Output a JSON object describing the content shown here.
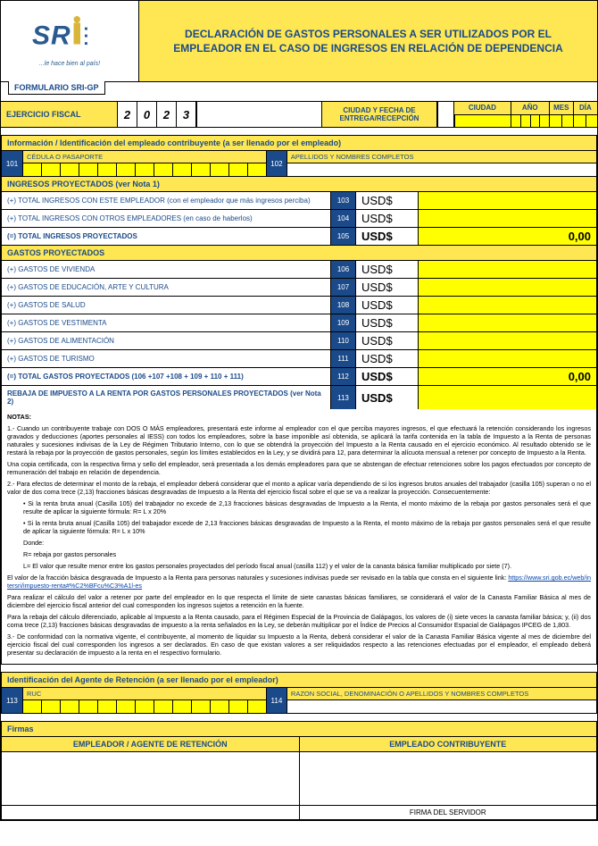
{
  "header": {
    "tagline": "...le hace bien al país!",
    "title": "DECLARACIÓN DE GASTOS PERSONALES A SER UTILIZADOS POR EL EMPLEADOR EN EL CASO DE INGRESOS EN RELACIÓN DE DEPENDENCIA",
    "formId": "FORMULARIO SRI-GP"
  },
  "fiscal": {
    "label": "EJERCICIO FISCAL",
    "year": [
      "2",
      "0",
      "2",
      "3"
    ],
    "cityDateLabel": "CIUDAD Y FECHA DE ENTREGA/RECEPCIÓN",
    "cols": {
      "ciudad": "CIUDAD",
      "ano": "AÑO",
      "mes": "MES",
      "dia": "DÍA"
    }
  },
  "ident": {
    "title": "Información / Identificación del empleado contribuyente (a ser llenado por el empleado)",
    "box101": "101",
    "lbl101": "CÉDULA O PASAPORTE",
    "box102": "102",
    "lbl102": "APELLIDOS Y NOMBRES COMPLETOS"
  },
  "ingresos": {
    "title": "INGRESOS PROYECTADOS (ver Nota 1)",
    "rows": [
      {
        "label": "(+) TOTAL INGRESOS CON ESTE EMPLEADOR (con el empleador que más ingresos perciba)",
        "num": "103",
        "usd": "USD$",
        "val": ""
      },
      {
        "label": "(+) TOTAL INGRESOS CON OTROS EMPLEADORES (en caso de haberlos)",
        "num": "104",
        "usd": "USD$",
        "val": ""
      },
      {
        "label": "(=) TOTAL INGRESOS PROYECTADOS",
        "num": "105",
        "usd": "USD$",
        "val": "0,00",
        "bold": true
      }
    ]
  },
  "gastos": {
    "title": "GASTOS PROYECTADOS",
    "rows": [
      {
        "label": "(+) GASTOS DE VIVIENDA",
        "num": "106",
        "usd": "USD$",
        "val": ""
      },
      {
        "label": "(+) GASTOS DE EDUCACIÓN, ARTE Y CULTURA",
        "num": "107",
        "usd": "USD$",
        "val": ""
      },
      {
        "label": "(+) GASTOS DE SALUD",
        "num": "108",
        "usd": "USD$",
        "val": ""
      },
      {
        "label": "(+) GASTOS DE VESTIMENTA",
        "num": "109",
        "usd": "USD$",
        "val": ""
      },
      {
        "label": "(+) GASTOS DE ALIMENTACIÓN",
        "num": "110",
        "usd": "USD$",
        "val": ""
      },
      {
        "label": "(+) GASTOS DE TURISMO",
        "num": "111",
        "usd": "USD$",
        "val": ""
      },
      {
        "label": "(=) TOTAL GASTOS PROYECTADOS                                                                                      (106 +107 +108 + 109 + 110 + 111)",
        "num": "112",
        "usd": "USD$",
        "val": "0,00",
        "bold": true
      },
      {
        "label": "REBAJA DE IMPUESTO A LA RENTA POR GASTOS PERSONALES PROYECTADOS                         (ver Nota 2)",
        "num": "113",
        "usd": "USD$",
        "val": "",
        "bold": true
      }
    ]
  },
  "notas": {
    "head": "NOTAS:",
    "p1": "1.- Cuando un contribuyente trabaje con DOS O MÁS empleadores, presentará este informe al empleador con el que perciba mayores ingresos, el que efectuará la retención considerando los ingresos gravados y deducciones (aportes personales al IESS) con todos los empleadores, sobre la base imponible así obtenida, se aplicará la tarifa contenida en la tabla de Impuesto a la Renta de personas naturales y sucesiones indivisas de la Ley de Régimen Tributario Interno, con lo que se obtendrá la proyección del Impuesto a la Renta causado en el ejercicio económico. Al resultado obtenido se le restará la rebaja por la proyección de gastos personales, según los límites establecidos en la Ley, y se dividirá para 12, para determinar la alícuota mensual a retener por concepto de Impuesto a la Renta.",
    "p1b": "Una copia certificada, con la respectiva firma y sello del empleador, será presentada a los demás empleadores para que se abstengan de efectuar retenciones sobre los pagos efectuados por concepto de remuneración del trabajo en relación de dependencia.",
    "p2": "2.- Para efectos de determinar el monto de la rebaja, el empleador deberá considerar que el monto a aplicar varía dependiendo de si los ingresos brutos anuales del trabajador (casilla 105) superan o no el valor de dos coma trece (2,13) fracciones básicas desgravadas de Impuesto a la Renta del ejercicio fiscal sobre el que se va a realizar la proyección. Consecuentemente:",
    "b1": "• Si la renta bruta anual (Casilla 105) del trabajador no excede de 2,13 fracciones básicas desgravadas de Impuesto a la Renta, el monto máximo de la rebaja por gastos personales será el que resulte de aplicar la siguiente fórmula: R= L x 20%",
    "b2": "• Si la renta bruta anual (Casilla 105) del trabajador excede de 2,13 fracciones básicas desgravadas de Impuesto a la Renta, el monto máximo de la rebaja por gastos personales será el que resulte de aplicar la siguiente fórmula: R= L x 10%",
    "donde": "Donde:",
    "dr": "R= rebaja por gastos personales",
    "dl": "L= El valor que resulte menor entre los gastos personales proyectados del período fiscal anual (casilla 112) y el valor de la canasta básica familiar multiplicado por siete (7).",
    "p3": "El valor de la fracción básica desgravada de Impuesto a la Renta para personas naturales y sucesiones indivisas puede ser revisado en la tabla que consta en el siguiente link: ",
    "link": "https://www.sri.gob.ec/web/intersri/impuesto-renta#%C2%BFcu%C3%A1l-es",
    "p4": "Para realizar el cálculo del valor a retener por parte del empleador en lo que respecta el límite de siete canastas básicas familiares, se considerará el valor de la Canasta Familiar Básica al mes de diciembre del ejercicio fiscal anterior del cual corresponden los ingresos sujetos a retención en la fuente.",
    "p5": "Para la rebaja del cálculo diferenciado, aplicable al Impuesto a la Renta causado, para el Régimen Especial de la Provincia de Galápagos, los valores de (i) siete veces la canasta familiar básica; y, (ii) dos coma trece (2,13) fracciones básicas desgravadas de impuesto a la renta señalados en la Ley, se deberán multiplicar por el Índice de Precios al Consumidor Espacial de Galápagos IPCEG de 1,803.",
    "p6": "3.- De conformidad con la normativa vigente, el contribuyente, al momento de liquidar su Impuesto a la Renta, deberá considerar el valor de la Canasta Familiar Básica vigente al mes de diciembre del ejercicio fiscal del cual corresponden los ingresos a ser declarados. En caso de que existan valores a ser reliquidados respecto a las retenciones efectuadas por el empleador, el empleado deberá presentar su declaración de impuesto a la renta en el respectivo formulario."
  },
  "agente": {
    "title": "Identificación del Agente de Retención (a ser llenado por el empleador)",
    "box113": "113",
    "lbl113": "RUC",
    "box114": "114",
    "lbl114": "RAZON SOCIAL, DENOMINACIÓN O APELLIDOS Y NOMBRES COMPLETOS"
  },
  "firmas": {
    "title": "Firmas",
    "left": "EMPLEADOR / AGENTE DE RETENCIÓN",
    "right": "EMPLEADO CONTRIBUYENTE",
    "servidor": "FIRMA DEL SERVIDOR"
  },
  "colors": {
    "yellowBand": "#fee753",
    "brightYellow": "#ffff00",
    "blue": "#1b4a8a"
  }
}
